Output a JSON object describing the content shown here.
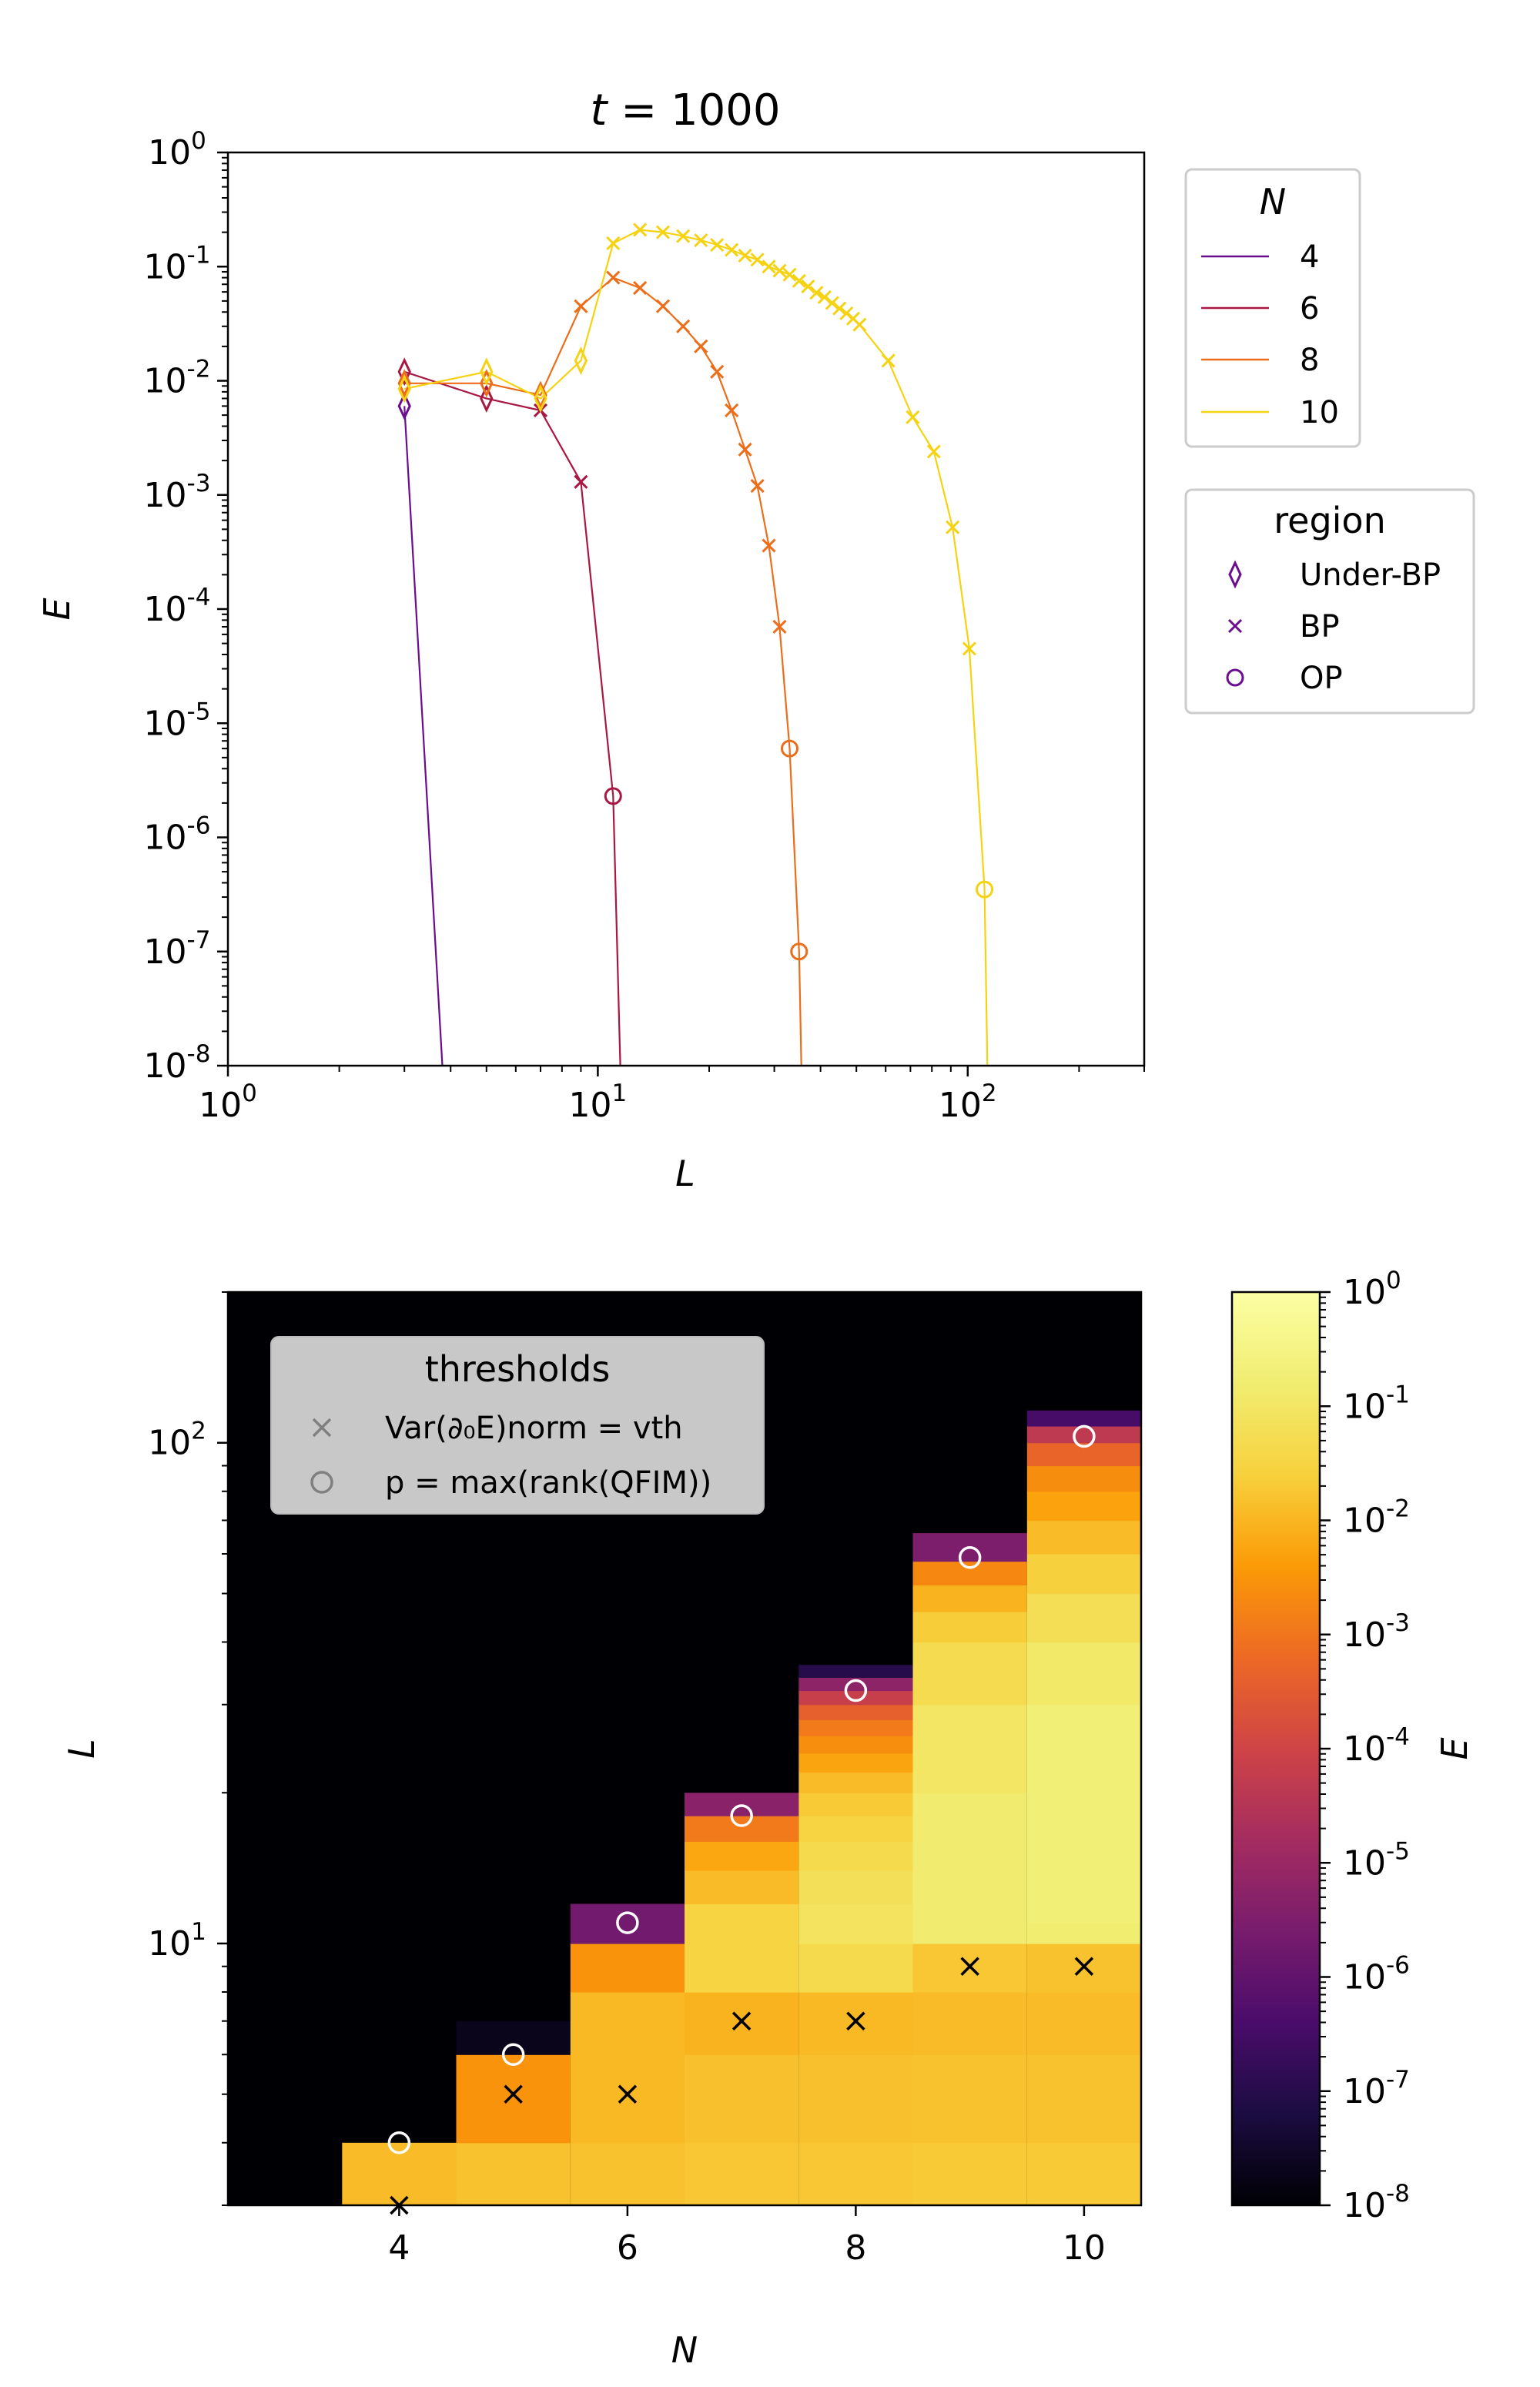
{
  "figure": {
    "top": {
      "title_var": "t",
      "title_value": "1000",
      "xlabel": "L",
      "ylabel": "E",
      "xticks": [
        "0",
        "1",
        "2"
      ],
      "yticks": [
        "0",
        "-1",
        "-2",
        "-3",
        "-4",
        "-5",
        "-6",
        "-7",
        "-8"
      ],
      "legend_N": {
        "title": "N",
        "entries": [
          {
            "label": "4",
            "color": "#6a0d8f"
          },
          {
            "label": "6",
            "color": "#a81842"
          },
          {
            "label": "8",
            "color": "#ec6d1a"
          },
          {
            "label": "10",
            "color": "#f5d313"
          }
        ]
      },
      "legend_region": {
        "title": "region",
        "entries": [
          {
            "label": "Under-BP",
            "marker": "diamond"
          },
          {
            "label": "BP",
            "marker": "x"
          },
          {
            "label": "OP",
            "marker": "circle"
          }
        ],
        "color": "#6a0d8f"
      }
    },
    "bottom": {
      "xlabel": "N",
      "ylabel": "L",
      "xticks": [
        "4",
        "6",
        "8",
        "10"
      ],
      "yticks_exp": [
        "1",
        "2"
      ],
      "colorbar": {
        "label": "E",
        "ticks": [
          "0",
          "-1",
          "-2",
          "-3",
          "-4",
          "-5",
          "-6",
          "-7",
          "-8"
        ]
      },
      "legend": {
        "title": "thresholds",
        "x_label": "Var(∂₀E)norm = vth",
        "o_label": "p = max(rank(QFIM))"
      }
    }
  },
  "chart_data": [
    {
      "type": "line",
      "title": "t = 1000",
      "xlabel": "L",
      "ylabel": "E",
      "xscale": "log",
      "yscale": "log",
      "xlim": [
        1,
        300
      ],
      "ylim": [
        1e-08,
        1
      ],
      "legend_placement": "outside right",
      "series": [
        {
          "name": "4",
          "color": "#6a0d8f",
          "points": [
            [
              3,
              0.006,
              "Under-BP"
            ],
            [
              3.8,
              1e-08,
              ""
            ]
          ]
        },
        {
          "name": "6",
          "color": "#a81842",
          "points": [
            [
              3,
              0.012,
              "Under-BP"
            ],
            [
              5,
              0.007,
              "Under-BP"
            ],
            [
              7,
              0.0055,
              "BP"
            ],
            [
              9,
              0.0013,
              "BP"
            ],
            [
              11,
              2.3e-06,
              "OP"
            ],
            [
              11.5,
              1e-08,
              ""
            ]
          ]
        },
        {
          "name": "8",
          "color": "#ec6d1a",
          "points": [
            [
              3,
              0.0095,
              "Under-BP"
            ],
            [
              5,
              0.0095,
              "Under-BP"
            ],
            [
              7,
              0.0075,
              "Under-BP"
            ],
            [
              9,
              0.045,
              "BP"
            ],
            [
              11,
              0.08,
              "BP"
            ],
            [
              13,
              0.065,
              "BP"
            ],
            [
              15,
              0.045,
              "BP"
            ],
            [
              17,
              0.03,
              "BP"
            ],
            [
              19,
              0.02,
              "BP"
            ],
            [
              21,
              0.012,
              "BP"
            ],
            [
              23,
              0.0055,
              "BP"
            ],
            [
              25,
              0.0025,
              "BP"
            ],
            [
              27,
              0.0012,
              "BP"
            ],
            [
              29,
              0.00036,
              "BP"
            ],
            [
              31,
              7e-05,
              "BP"
            ],
            [
              33,
              6e-06,
              "OP"
            ],
            [
              35,
              1e-07,
              "OP"
            ],
            [
              35.5,
              1e-08,
              ""
            ]
          ]
        },
        {
          "name": "10",
          "color": "#f5d313",
          "points": [
            [
              3,
              0.0085,
              "Under-BP"
            ],
            [
              5,
              0.012,
              "Under-BP"
            ],
            [
              7,
              0.007,
              "Under-BP"
            ],
            [
              9,
              0.015,
              "Under-BP"
            ],
            [
              11,
              0.16,
              "BP"
            ],
            [
              13,
              0.21,
              "BP"
            ],
            [
              15,
              0.2,
              "BP"
            ],
            [
              17,
              0.185,
              "BP"
            ],
            [
              19,
              0.17,
              "BP"
            ],
            [
              21,
              0.155,
              "BP"
            ],
            [
              23,
              0.14,
              "BP"
            ],
            [
              25,
              0.125,
              "BP"
            ],
            [
              27,
              0.115,
              "BP"
            ],
            [
              29,
              0.1,
              "BP"
            ],
            [
              31,
              0.092,
              "BP"
            ],
            [
              33,
              0.085,
              "BP"
            ],
            [
              35,
              0.075,
              "BP"
            ],
            [
              37,
              0.067,
              "BP"
            ],
            [
              39,
              0.059,
              "BP"
            ],
            [
              41,
              0.054,
              "BP"
            ],
            [
              43,
              0.048,
              "BP"
            ],
            [
              45,
              0.043,
              "BP"
            ],
            [
              47,
              0.039,
              "BP"
            ],
            [
              49,
              0.035,
              "BP"
            ],
            [
              51,
              0.031,
              "BP"
            ],
            [
              61,
              0.015,
              "BP"
            ],
            [
              71,
              0.0048,
              "BP"
            ],
            [
              81,
              0.0024,
              "BP"
            ],
            [
              91,
              0.00052,
              "BP"
            ],
            [
              101,
              4.5e-05,
              "BP"
            ],
            [
              111,
              3.5e-07,
              "OP"
            ],
            [
              113,
              1e-08,
              ""
            ]
          ]
        }
      ]
    },
    {
      "type": "heatmap",
      "xlabel": "N",
      "ylabel": "L",
      "yscale": "log",
      "xlim": [
        2.5,
        10.5
      ],
      "ylim": [
        3,
        200
      ],
      "colorbar": {
        "label": "E",
        "scale": "log",
        "range": [
          1e-08,
          1
        ],
        "colormap": "inferno"
      },
      "columns": [
        {
          "N": 3,
          "L_max": 3,
          "cells": []
        },
        {
          "N": 4,
          "L_max": 4,
          "cells": [
            [
              3,
              4,
              0.012
            ]
          ]
        },
        {
          "N": 5,
          "L_max": 7,
          "cells": [
            [
              3,
              4,
              0.015
            ],
            [
              4,
              6,
              0.003
            ],
            [
              6,
              7,
              2e-08
            ]
          ]
        },
        {
          "N": 6,
          "L_max": 12,
          "cells": [
            [
              3,
              4,
              0.015
            ],
            [
              4,
              6,
              0.011
            ],
            [
              6,
              8,
              0.011
            ],
            [
              8,
              10,
              0.003
            ],
            [
              10,
              12,
              2e-06
            ]
          ]
        },
        {
          "N": 7,
          "L_max": 20,
          "cells": [
            [
              3,
              4,
              0.018
            ],
            [
              4,
              6,
              0.014
            ],
            [
              6,
              8,
              0.009
            ],
            [
              8,
              10,
              0.03
            ],
            [
              10,
              12,
              0.03
            ],
            [
              12,
              14,
              0.012
            ],
            [
              14,
              16,
              0.006
            ],
            [
              16,
              18,
              0.0012
            ],
            [
              18,
              20,
              5e-06
            ]
          ]
        },
        {
          "N": 8,
          "L_max": 36,
          "cells": [
            [
              3,
              4,
              0.018
            ],
            [
              4,
              6,
              0.014
            ],
            [
              6,
              8,
              0.011
            ],
            [
              8,
              10,
              0.045
            ],
            [
              10,
              12,
              0.08
            ],
            [
              12,
              14,
              0.065
            ],
            [
              14,
              16,
              0.045
            ],
            [
              16,
              18,
              0.03
            ],
            [
              18,
              20,
              0.02
            ],
            [
              20,
              22,
              0.012
            ],
            [
              22,
              24,
              0.0055
            ],
            [
              24,
              26,
              0.0025
            ],
            [
              26,
              28,
              0.0012
            ],
            [
              28,
              30,
              0.0004
            ],
            [
              30,
              32,
              7e-05
            ],
            [
              32,
              34,
              6e-06
            ],
            [
              34,
              36,
              1e-07
            ]
          ]
        },
        {
          "N": 9,
          "L_max": 66,
          "cells": [
            [
              3,
              4,
              0.02
            ],
            [
              4,
              6,
              0.015
            ],
            [
              6,
              8,
              0.012
            ],
            [
              8,
              10,
              0.018
            ],
            [
              10,
              20,
              0.15
            ],
            [
              20,
              30,
              0.1
            ],
            [
              30,
              40,
              0.05
            ],
            [
              40,
              46,
              0.022
            ],
            [
              46,
              52,
              0.009
            ],
            [
              52,
              58,
              0.002
            ],
            [
              58,
              66,
              3e-06
            ]
          ]
        },
        {
          "N": 10,
          "L_max": 116,
          "cells": [
            [
              3,
              4,
              0.02
            ],
            [
              4,
              6,
              0.015
            ],
            [
              6,
              8,
              0.012
            ],
            [
              8,
              10,
              0.015
            ],
            [
              10,
              11,
              0.16
            ],
            [
              11,
              30,
              0.2
            ],
            [
              30,
              40,
              0.12
            ],
            [
              40,
              50,
              0.06
            ],
            [
              50,
              60,
              0.025
            ],
            [
              60,
              70,
              0.012
            ],
            [
              70,
              80,
              0.005
            ],
            [
              80,
              90,
              0.0024
            ],
            [
              90,
              100,
              0.0005
            ],
            [
              100,
              108,
              4.5e-05
            ],
            [
              108,
              116,
              3.5e-07
            ]
          ]
        }
      ],
      "thresholds_x": [
        [
          4,
          3
        ],
        [
          5,
          5
        ],
        [
          6,
          5
        ],
        [
          7,
          7
        ],
        [
          8,
          7
        ],
        [
          9,
          9
        ],
        [
          10,
          9
        ]
      ],
      "thresholds_o": [
        [
          4,
          4
        ],
        [
          5,
          6
        ],
        [
          6,
          11
        ],
        [
          7,
          18
        ],
        [
          8,
          32
        ],
        [
          9,
          59
        ],
        [
          10,
          103
        ]
      ]
    }
  ]
}
